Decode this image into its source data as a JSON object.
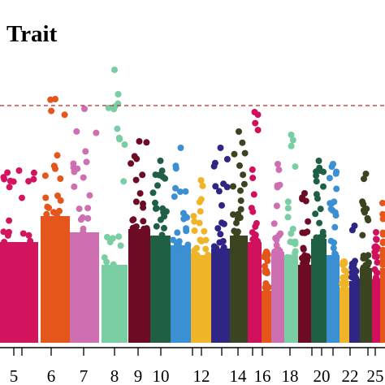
{
  "chart_data": {
    "type": "scatter",
    "title": "Trait",
    "xlabel": "",
    "ylabel": "",
    "threshold_line": {
      "style": "dashed",
      "color": "#c0262d",
      "y": 7.3
    },
    "ylim": [
      0,
      8.6
    ],
    "tick_labels": [
      {
        "label": "5",
        "chr": 5
      },
      {
        "label": "6",
        "chr": 6
      },
      {
        "label": "7",
        "chr": 7
      },
      {
        "label": "8",
        "chr": 8
      },
      {
        "label": "9",
        "chr": 9
      },
      {
        "label": "10",
        "chr": 10
      },
      {
        "label": "12",
        "chr": 12
      },
      {
        "label": "14",
        "chr": 14
      },
      {
        "label": "16",
        "chr": 16
      },
      {
        "label": "18",
        "chr": 18
      },
      {
        "label": "20",
        "chr": 20
      },
      {
        "label": "22",
        "chr": 22
      },
      {
        "label": "25",
        "chr": 25
      }
    ],
    "chromosomes": [
      {
        "chr": 5,
        "color": "#d3145f",
        "core": 3.1,
        "peak": 5.3
      },
      {
        "chr": 6,
        "color": "#e4561b",
        "core": 3.9,
        "peak": 7.5
      },
      {
        "chr": 7,
        "color": "#cd6fb0",
        "core": 3.4,
        "peak": 7.2
      },
      {
        "chr": 8,
        "color": "#79cfa3",
        "core": 2.4,
        "peak": 8.4
      },
      {
        "chr": 9,
        "color": "#6d0b24",
        "core": 3.5,
        "peak": 6.2
      },
      {
        "chr": 10,
        "color": "#1f5f44",
        "core": 3.3,
        "peak": 5.6
      },
      {
        "chr": 11,
        "color": "#3b8fd3",
        "core": 3.0,
        "peak": 6.0
      },
      {
        "chr": 12,
        "color": "#f0b429",
        "core": 2.7,
        "peak": 5.0
      },
      {
        "chr": 13,
        "color": "#2f2585",
        "core": 2.9,
        "peak": 6.0
      },
      {
        "chr": 14,
        "color": "#3b4420",
        "core": 3.3,
        "peak": 6.5
      },
      {
        "chr": 15,
        "color": "#d1105d",
        "core": 3.1,
        "peak": 7.1
      },
      {
        "chr": 16,
        "color": "#e4561b",
        "core": 1.6,
        "peak": 2.8
      },
      {
        "chr": 17,
        "color": "#cd6fb0",
        "core": 2.8,
        "peak": 5.5
      },
      {
        "chr": 18,
        "color": "#79cfa3",
        "core": 2.6,
        "peak": 6.4
      },
      {
        "chr": 19,
        "color": "#6d0b24",
        "core": 2.4,
        "peak": 4.6
      },
      {
        "chr": 20,
        "color": "#1f5f44",
        "core": 3.2,
        "peak": 5.6
      },
      {
        "chr": 21,
        "color": "#3b8fd3",
        "core": 2.7,
        "peak": 5.5
      },
      {
        "chr": 22,
        "color": "#f0b429",
        "core": 1.7,
        "peak": 2.5
      },
      {
        "chr": 23,
        "color": "#2f2585",
        "core": 1.9,
        "peak": 3.6
      },
      {
        "chr": 24,
        "color": "#3b4420",
        "core": 2.3,
        "peak": 5.2
      },
      {
        "chr": 25,
        "color": "#d1105d",
        "core": 1.9,
        "peak": 3.4
      },
      {
        "chr": 26,
        "color": "#e4561b",
        "core": 2.3,
        "peak": 4.3
      }
    ]
  }
}
